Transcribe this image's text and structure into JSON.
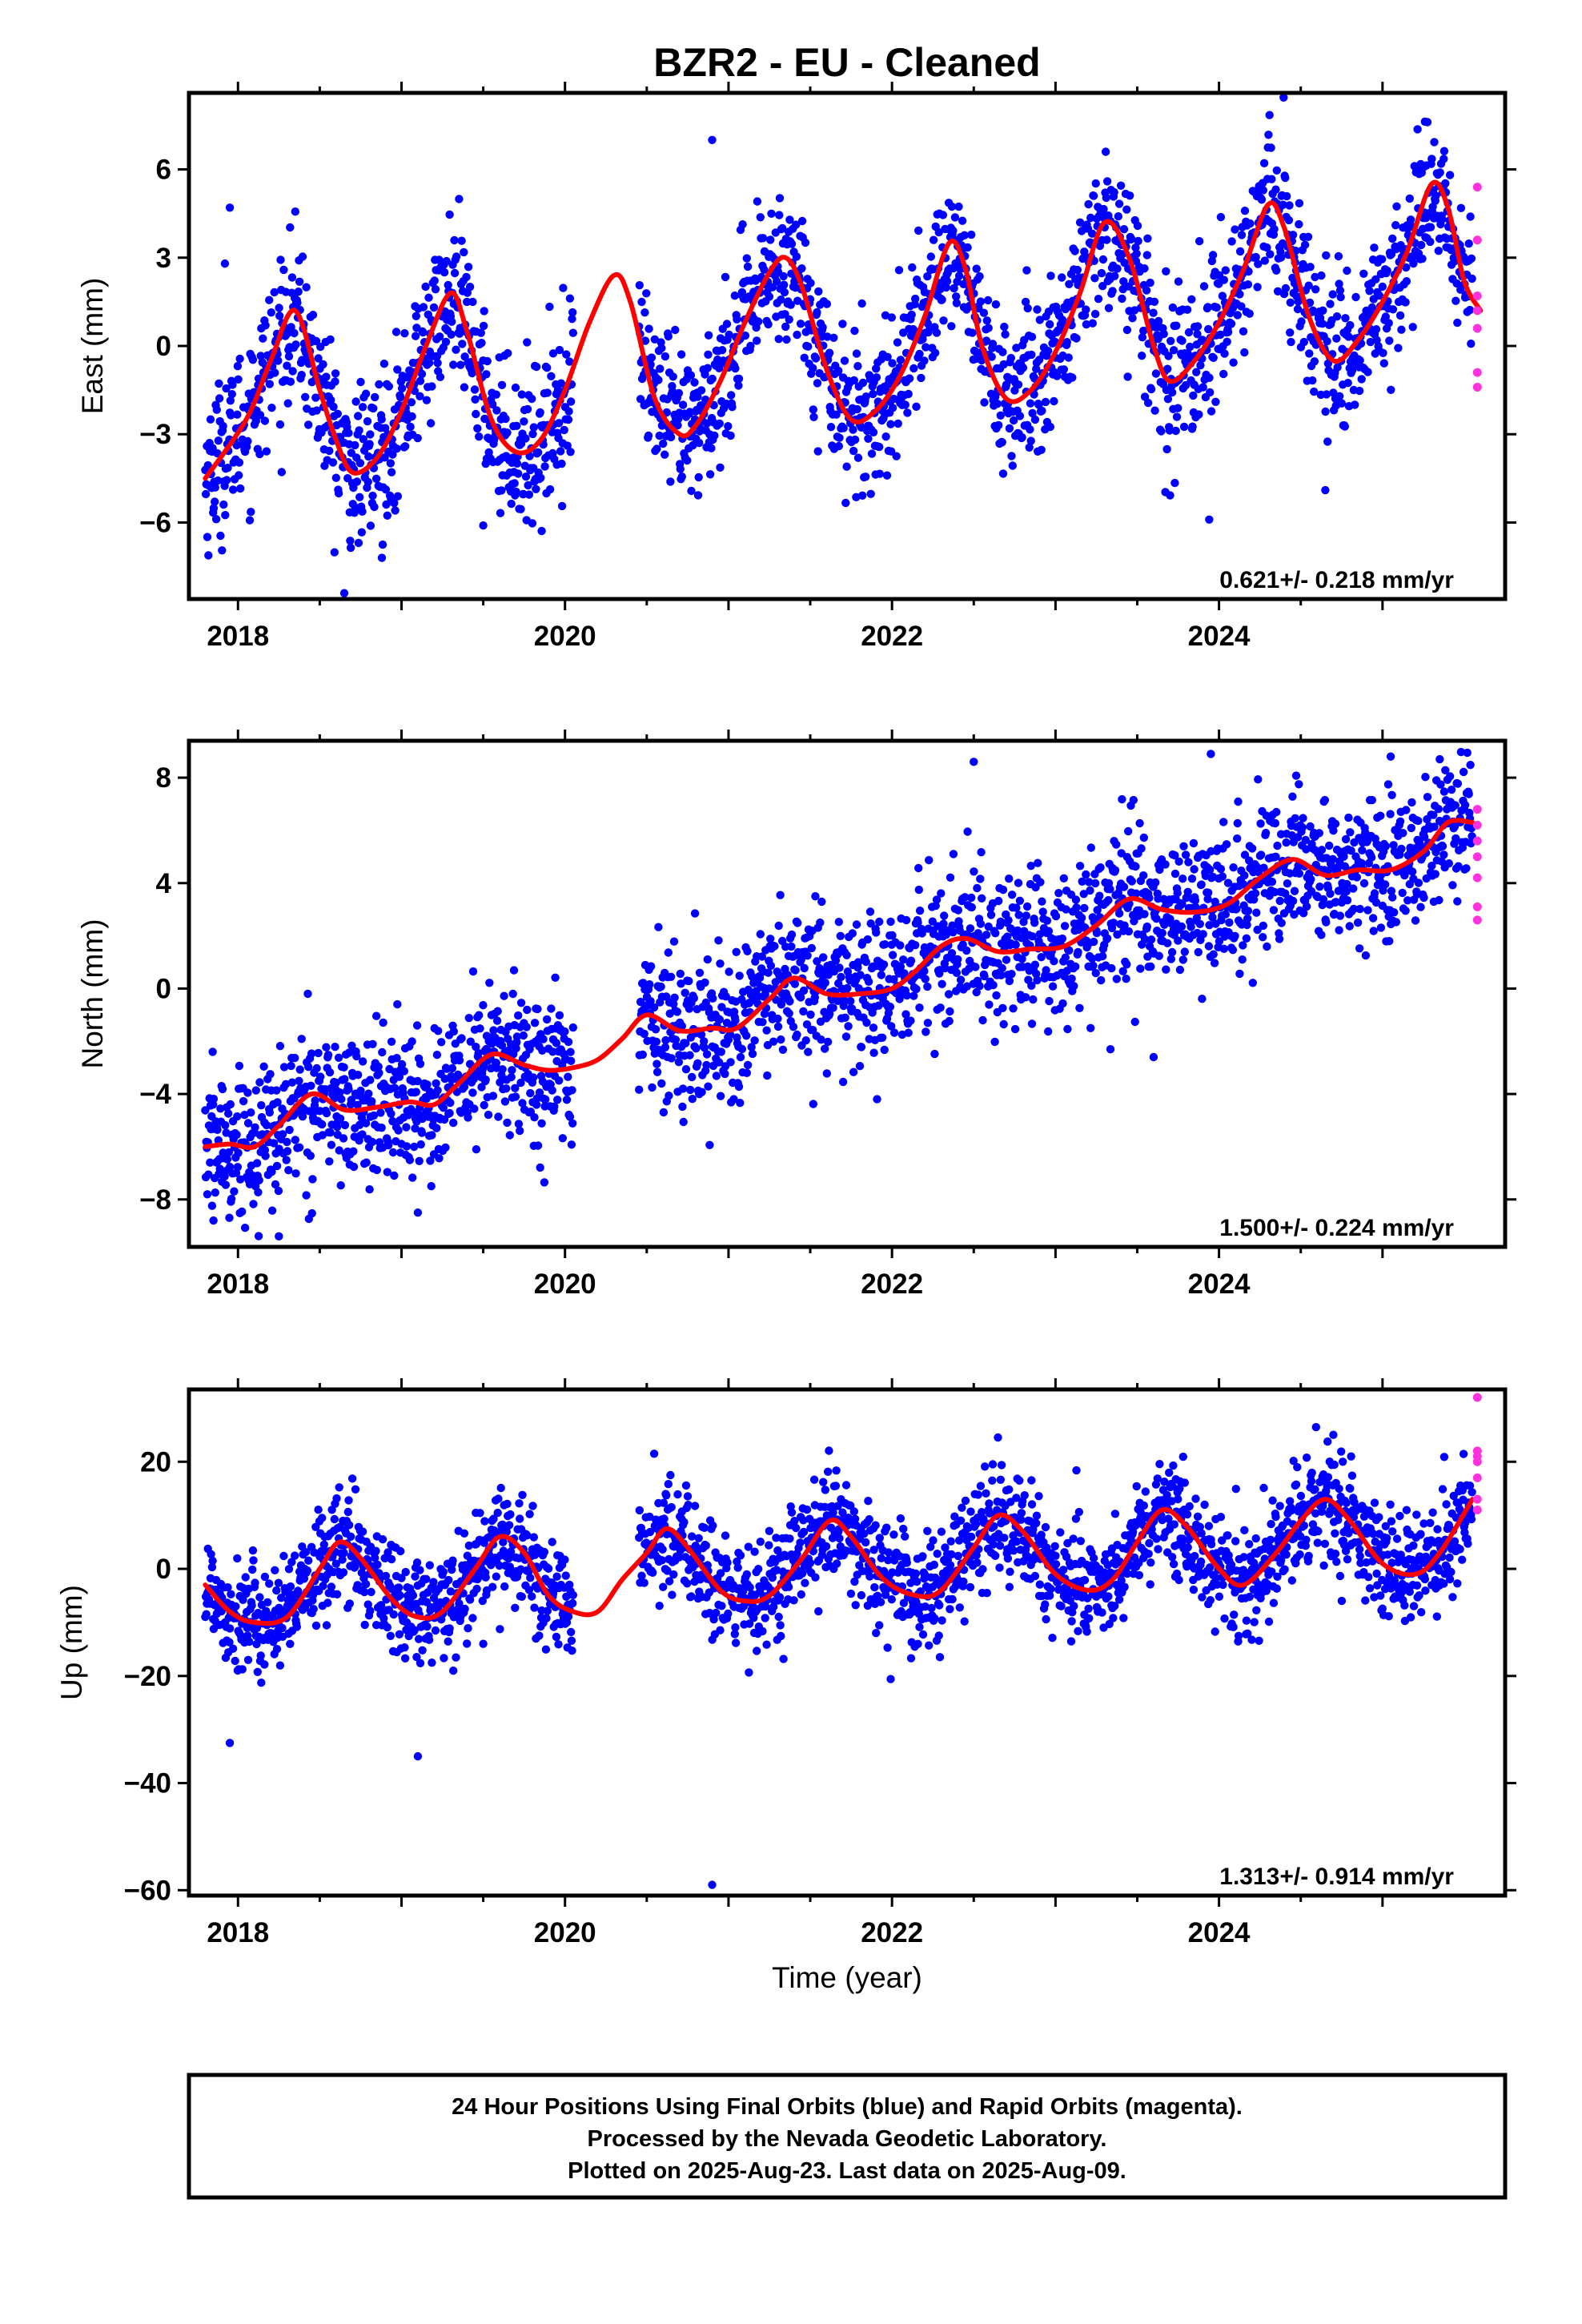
{
  "title": "BZR2  - EU - Cleaned",
  "xlabel": "Time (year)",
  "colors": {
    "final": "#0000ff",
    "rapid": "#ff33dd",
    "model": "#ff0000",
    "frame": "#000000"
  },
  "footer": {
    "line1": "24 Hour Positions Using Final Orbits (blue) and Rapid Orbits (magenta).",
    "line2": "Processed by the Nevada Geodetic Laboratory.",
    "line3": "Plotted on 2025-Aug-23. Last data on 2025-Aug-09."
  },
  "chart_data": [
    {
      "type": "scatter",
      "component": "East",
      "ylabel": "East (mm)",
      "xlim": [
        2017.7,
        2025.75
      ],
      "ylim": [
        -8.6,
        8.6
      ],
      "xticks": [
        2018,
        2020,
        2022,
        2024
      ],
      "yticks": [
        -6,
        -3,
        0,
        3,
        6
      ],
      "rate_label": "0.621+/- 0.218 mm/yr",
      "grid": false,
      "series": [
        {
          "role": "model",
          "x": [
            2017.8,
            2018.05,
            2018.2,
            2018.35,
            2018.5,
            2018.6,
            2018.7,
            2018.85,
            2019.0,
            2019.15,
            2019.3,
            2019.4,
            2019.55,
            2019.7,
            2019.85,
            2020.0,
            2020.15,
            2020.3,
            2020.4,
            2020.55,
            2020.7,
            2020.8,
            2020.95,
            2021.1,
            2021.25,
            2021.35,
            2021.45,
            2021.6,
            2021.75,
            2021.9,
            2022.05,
            2022.2,
            2022.35,
            2022.45,
            2022.55,
            2022.7,
            2022.85,
            2023.0,
            2023.15,
            2023.3,
            2023.45,
            2023.6,
            2023.7,
            2023.85,
            2024.0,
            2024.15,
            2024.3,
            2024.4,
            2024.55,
            2024.7,
            2024.85,
            2025.0,
            2025.15,
            2025.3,
            2025.4,
            2025.5,
            2025.6
          ],
          "y": [
            -4.5,
            -2.5,
            -0.5,
            1.2,
            -1.5,
            -3.2,
            -4.3,
            -3.8,
            -2.2,
            0,
            1.8,
            0.5,
            -2.5,
            -3.6,
            -3.2,
            -1.5,
            0.8,
            2.4,
            1.5,
            -1.8,
            -3.0,
            -2.7,
            -1.2,
            0.8,
            2.5,
            3.0,
            2.0,
            -0.8,
            -2.5,
            -2.2,
            -1.0,
            1.0,
            3.5,
            2.6,
            0,
            -1.8,
            -1.5,
            -0.2,
            1.8,
            4.2,
            3.0,
            0,
            -1.2,
            -0.5,
            0.8,
            2.6,
            4.8,
            4.0,
            1.0,
            -0.5,
            0.2,
            1.5,
            3.2,
            5.5,
            4.7,
            2.2,
            1.2
          ]
        },
        {
          "role": "final",
          "x_range": [
            2017.8,
            2025.55
          ],
          "spread": 1.3,
          "outliers": [
            [
              2017.95,
              4.7
            ],
            [
              2017.92,
              2.8
            ],
            [
              2018.65,
              -8.4
            ],
            [
              2018.88,
              -7.2
            ],
            [
              2020.9,
              7.0
            ],
            [
              2023.94,
              -5.9
            ],
            [
              2024.65,
              -4.9
            ],
            [
              2019.5,
              -6.1
            ]
          ]
        },
        {
          "role": "rapid",
          "x": [
            2025.58,
            2025.58,
            2025.58,
            2025.58,
            2025.58,
            2025.58,
            2025.58
          ],
          "y": [
            5.4,
            3.6,
            1.7,
            1.2,
            0.6,
            -0.9,
            -1.4
          ]
        }
      ]
    },
    {
      "type": "scatter",
      "component": "North",
      "ylabel": "North (mm)",
      "xlim": [
        2017.7,
        2025.75
      ],
      "ylim": [
        -9.8,
        9.4
      ],
      "xticks": [
        2018,
        2020,
        2022,
        2024
      ],
      "yticks": [
        -8,
        -4,
        0,
        4,
        8
      ],
      "rate_label": "1.500+/- 0.224 mm/yr",
      "grid": false,
      "series": [
        {
          "role": "model",
          "x": [
            2017.8,
            2017.95,
            2018.1,
            2018.25,
            2018.45,
            2018.65,
            2018.85,
            2019.05,
            2019.2,
            2019.35,
            2019.55,
            2019.75,
            2019.9,
            2020.05,
            2020.2,
            2020.35,
            2020.5,
            2020.7,
            2020.9,
            2021.05,
            2021.25,
            2021.4,
            2021.6,
            2021.8,
            2022.0,
            2022.15,
            2022.3,
            2022.45,
            2022.65,
            2022.85,
            2023.05,
            2023.25,
            2023.45,
            2023.65,
            2023.85,
            2024.05,
            2024.25,
            2024.45,
            2024.65,
            2024.85,
            2025.05,
            2025.25,
            2025.4,
            2025.55
          ],
          "y": [
            -6,
            -5.9,
            -6,
            -5.2,
            -4.0,
            -4.6,
            -4.5,
            -4.3,
            -4.4,
            -3.6,
            -2.5,
            -2.9,
            -3.1,
            -3.0,
            -2.7,
            -1.9,
            -1.0,
            -1.6,
            -1.5,
            -1.5,
            -0.4,
            0.4,
            -0.2,
            -0.2,
            0,
            0.7,
            1.6,
            1.9,
            1.4,
            1.5,
            1.6,
            2.4,
            3.4,
            3.0,
            2.9,
            3.2,
            4.2,
            4.9,
            4.3,
            4.5,
            4.5,
            5.2,
            6.3,
            6.3
          ]
        },
        {
          "role": "final",
          "x_range": [
            2017.8,
            2025.55
          ],
          "spread": 1.4,
          "outliers": [
            [
              2018.25,
              -9.4
            ],
            [
              2017.85,
              -8.8
            ],
            [
              2019.1,
              -8.5
            ],
            [
              2022.5,
              8.6
            ],
            [
              2023.6,
              -2.6
            ],
            [
              2023.95,
              8.9
            ],
            [
              2025.05,
              8.8
            ],
            [
              2025.35,
              8.7
            ]
          ]
        },
        {
          "role": "rapid",
          "x": [
            2025.58,
            2025.58,
            2025.58,
            2025.58,
            2025.58,
            2025.58,
            2025.58
          ],
          "y": [
            6.8,
            6.2,
            5.6,
            5.0,
            4.2,
            3.1,
            2.6
          ]
        }
      ]
    },
    {
      "type": "scatter",
      "component": "Up",
      "ylabel": "Up (mm)",
      "xlim": [
        2017.7,
        2025.75
      ],
      "ylim": [
        -61,
        33.5
      ],
      "xticks": [
        2018,
        2020,
        2022,
        2024
      ],
      "yticks": [
        -60,
        -40,
        -20,
        0,
        20
      ],
      "rate_label": "1.313+/- 0.914 mm/yr",
      "grid": false,
      "series": [
        {
          "role": "model",
          "x": [
            2017.8,
            2017.95,
            2018.1,
            2018.3,
            2018.5,
            2018.62,
            2018.75,
            2018.95,
            2019.1,
            2019.25,
            2019.45,
            2019.6,
            2019.75,
            2019.9,
            2020.05,
            2020.2,
            2020.35,
            2020.5,
            2020.62,
            2020.75,
            2020.95,
            2021.1,
            2021.25,
            2021.45,
            2021.62,
            2021.75,
            2021.95,
            2022.15,
            2022.3,
            2022.5,
            2022.65,
            2022.8,
            2023.0,
            2023.2,
            2023.35,
            2023.5,
            2023.65,
            2023.8,
            2024.0,
            2024.15,
            2024.35,
            2024.5,
            2024.65,
            2024.8,
            2025.0,
            2025.2,
            2025.35,
            2025.55
          ],
          "y": [
            -3,
            -8,
            -10,
            -9,
            0,
            5,
            2,
            -6,
            -9,
            -8,
            0,
            6,
            3,
            -5,
            -8,
            -8,
            -2,
            3,
            7.5,
            4,
            -4,
            -6,
            -5,
            2,
            9,
            6,
            -2,
            -5,
            -4,
            4,
            10,
            7,
            -1,
            -4,
            -2,
            5,
            11,
            8,
            0,
            -3,
            3,
            9,
            13,
            9,
            1,
            -1,
            3,
            13
          ]
        },
        {
          "role": "final",
          "x_range": [
            2017.8,
            2025.55
          ],
          "spread": 5.2,
          "outliers": [
            [
              2017.95,
              -32.5
            ],
            [
              2019.1,
              -35
            ],
            [
              2020.9,
              -59
            ],
            [
              2019.5,
              -14
            ]
          ]
        },
        {
          "role": "rapid",
          "x": [
            2025.58,
            2025.58,
            2025.58,
            2025.58,
            2025.58,
            2025.58,
            2025.58
          ],
          "y": [
            32,
            22,
            21,
            20,
            17,
            13,
            11
          ]
        }
      ]
    }
  ]
}
